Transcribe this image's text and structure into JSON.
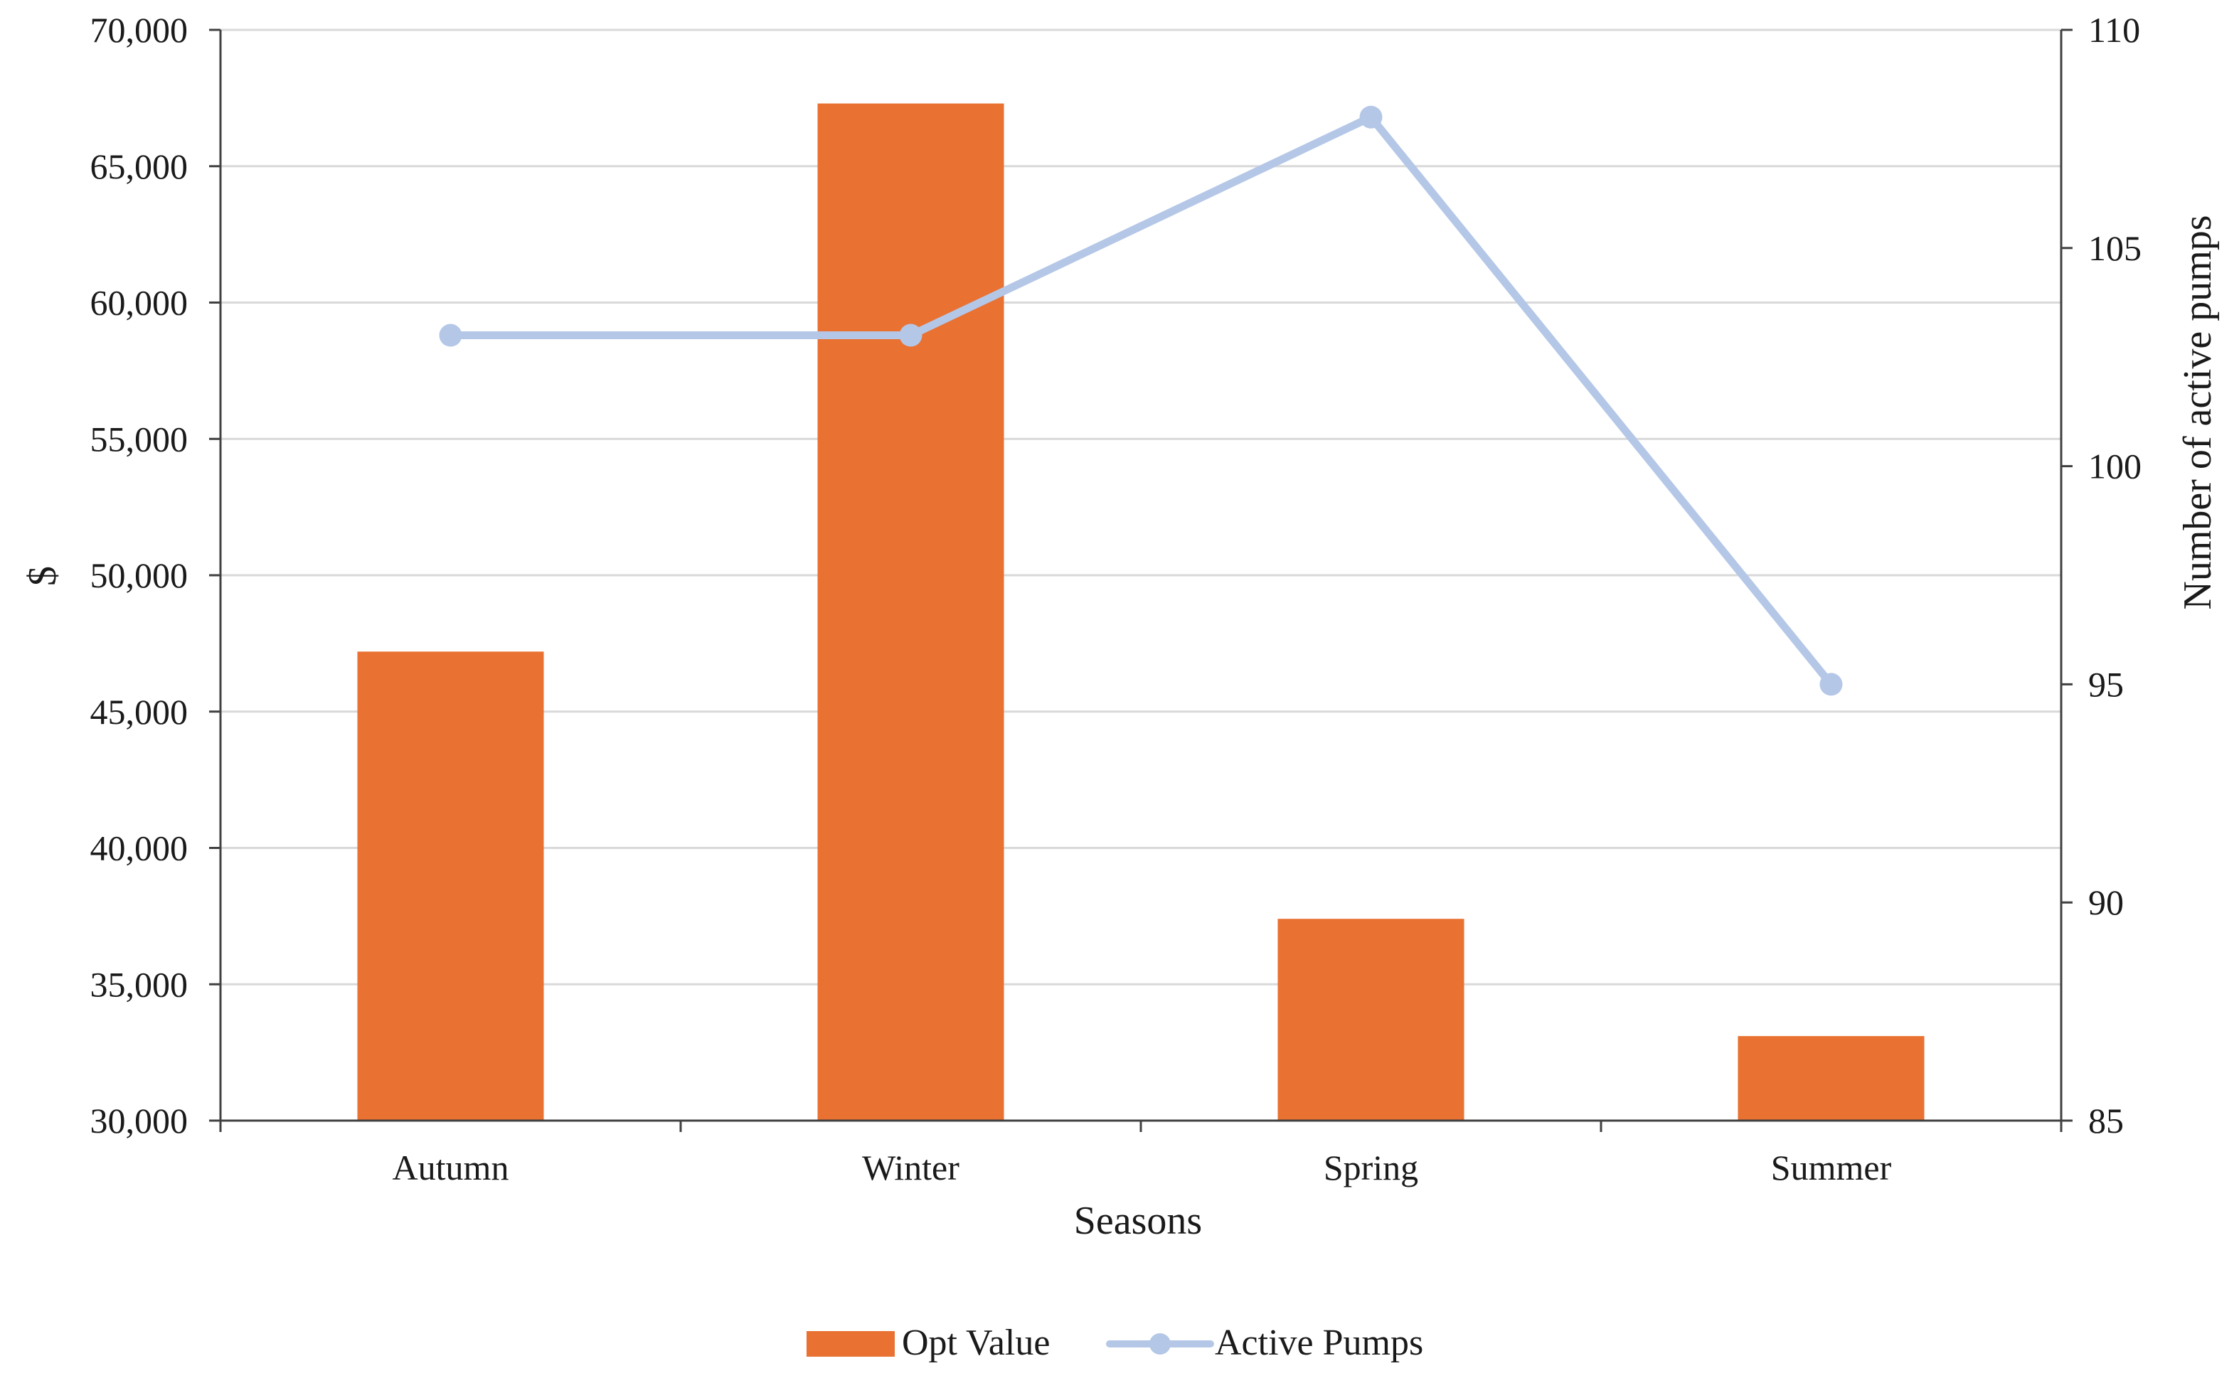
{
  "chart_data": {
    "type": "bar",
    "categories": [
      "Autumn",
      "Winter",
      "Spring",
      "Summer"
    ],
    "series": [
      {
        "name": "Opt Value",
        "type": "bar",
        "axis": "left",
        "color": "#E97132",
        "values": [
          47200,
          67300,
          37400,
          33100
        ]
      },
      {
        "name": "Active Pumps",
        "type": "line",
        "axis": "right",
        "color": "#B4C7E7",
        "values": [
          103,
          103,
          108,
          95
        ]
      }
    ],
    "xlabel": "Seasons",
    "ylabel": "$",
    "y2label": "Number of active pumps",
    "ylim": [
      30000,
      70000
    ],
    "y2lim": [
      85,
      110
    ],
    "yticks": [
      "30,000",
      "35,000",
      "40,000",
      "45,000",
      "50,000",
      "55,000",
      "60,000",
      "65,000",
      "70,000"
    ],
    "y2ticks": [
      "85",
      "90",
      "95",
      "100",
      "105",
      "110"
    ],
    "grid": true,
    "legend_position": "bottom"
  }
}
